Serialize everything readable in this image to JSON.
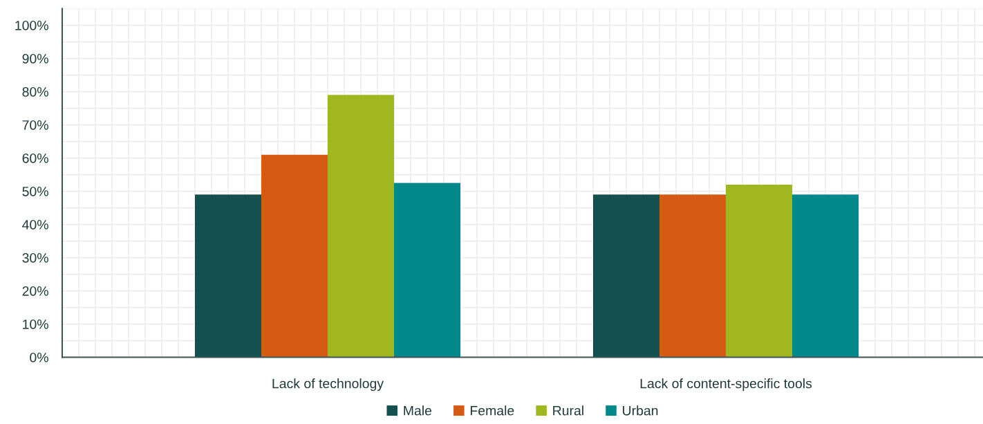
{
  "chart_data": {
    "type": "bar",
    "categories": [
      "Lack of technology",
      "Lack of content-specific tools"
    ],
    "series": [
      {
        "name": "Male",
        "color": "#13504f",
        "values": [
          49,
          49
        ]
      },
      {
        "name": "Female",
        "color": "#d55b15",
        "values": [
          61,
          49
        ]
      },
      {
        "name": "Rural",
        "color": "#a1b720",
        "values": [
          79,
          52
        ]
      },
      {
        "name": "Urban",
        "color": "#02878a",
        "values": [
          52.5,
          49
        ]
      }
    ],
    "ylim": [
      0,
      105
    ],
    "yticks": [
      {
        "value": 0,
        "label": "0%"
      },
      {
        "value": 10,
        "label": "10%"
      },
      {
        "value": 20,
        "label": "20%"
      },
      {
        "value": 30,
        "label": "30%"
      },
      {
        "value": 40,
        "label": "40%"
      },
      {
        "value": 50,
        "label": "50%"
      },
      {
        "value": 60,
        "label": "60%"
      },
      {
        "value": 70,
        "label": "70%"
      },
      {
        "value": 80,
        "label": "80%"
      },
      {
        "value": 90,
        "label": "90%"
      },
      {
        "value": 100,
        "label": "100%"
      }
    ],
    "grid": true,
    "legend": "bottom"
  }
}
